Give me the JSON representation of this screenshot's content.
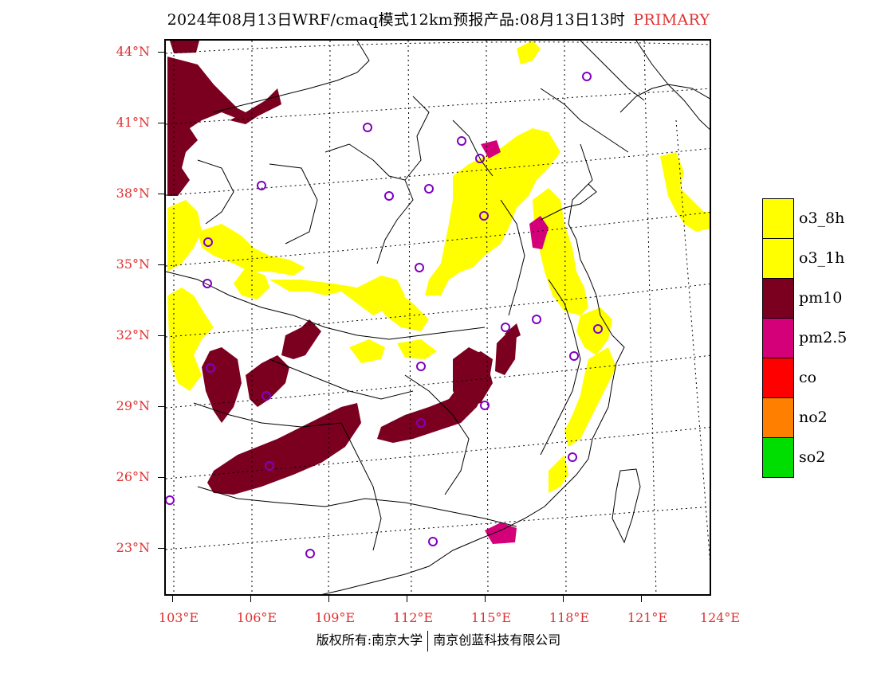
{
  "title": {
    "main": "2024年08月13日WRF/cmaq模式12km预报产品:08月13日13时",
    "type": "PRIMARY"
  },
  "axes": {
    "lat_labels": [
      "44°N",
      "41°N",
      "38°N",
      "35°N",
      "32°N",
      "29°N",
      "26°N",
      "23°N"
    ],
    "lon_labels": [
      "103°E",
      "106°E",
      "109°E",
      "112°E",
      "115°E",
      "118°E",
      "121°E",
      "124°E"
    ]
  },
  "legend": {
    "items": [
      {
        "label": "o3_8h",
        "color": "#ffff00"
      },
      {
        "label": "o3_1h",
        "color": "#ffff00"
      },
      {
        "label": "pm10",
        "color": "#7b0020"
      },
      {
        "label": "pm2.5",
        "color": "#d4007a"
      },
      {
        "label": "co",
        "color": "#ff0000"
      },
      {
        "label": "no2",
        "color": "#ff7f00"
      },
      {
        "label": "so2",
        "color": "#00dd00"
      }
    ]
  },
  "copyright": {
    "left": "版权所有:南京大学",
    "right": "南京创蓝科技有限公司"
  },
  "colors": {
    "o3": "#ffff00",
    "pm10": "#7b0020",
    "pm25": "#d4007a",
    "station": "#8000c0",
    "axis_label": "#e03030"
  }
}
